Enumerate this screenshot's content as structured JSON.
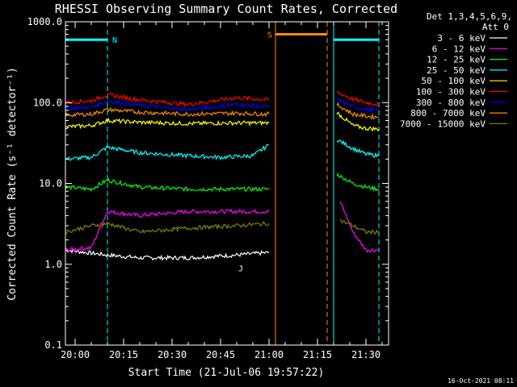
{
  "chart_data": {
    "type": "line",
    "title": "RHESSI Observing Summary Count Rates, Corrected",
    "xlabel": "Start Time (21-Jul-06 19:57:22)",
    "ylabel": "Corrected Count Rate (s⁻¹ detector⁻¹)",
    "y_scale": "log",
    "ylim": [
      0.1,
      1000
    ],
    "xlim": [
      "19:57",
      "21:37"
    ],
    "xticks": [
      "20:00",
      "20:15",
      "20:30",
      "20:45",
      "21:00",
      "21:15",
      "21:30"
    ],
    "yticks": [
      "0.1",
      "1.0",
      "10.0",
      "100.0",
      "1000.0"
    ],
    "legend_header": [
      "Det 1,3,4,5,6,9,",
      "Att 0"
    ],
    "legend_position": "right",
    "timestamp": "16-Oct-2021 08:11",
    "series": [
      {
        "name": "3 - 6 keV",
        "color": "#ffffff",
        "segments": [
          {
            "x": [
              "19:57",
              "20:10",
              "20:20",
              "20:35",
              "20:50",
              "21:00"
            ],
            "y": [
              1.5,
              1.3,
              1.2,
              1.2,
              1.3,
              1.4
            ]
          }
        ]
      },
      {
        "name": "6 - 12 keV",
        "color": "#ff00ff",
        "segments": [
          {
            "x": [
              "19:57",
              "20:05",
              "20:10",
              "20:20",
              "20:35",
              "20:50",
              "21:00"
            ],
            "y": [
              1.5,
              1.6,
              4.5,
              4.0,
              4.5,
              4.5,
              4.5
            ]
          },
          {
            "x": [
              "21:22",
              "21:26",
              "21:30",
              "21:34"
            ],
            "y": [
              6.0,
              2.5,
              1.5,
              1.5
            ]
          }
        ]
      },
      {
        "name": "12 - 25 keV",
        "color": "#00ff00",
        "segments": [
          {
            "x": [
              "19:57",
              "20:05",
              "20:10",
              "20:20",
              "20:35",
              "20:50",
              "21:00"
            ],
            "y": [
              9,
              8.5,
              11,
              9,
              8.5,
              8.5,
              8.5
            ]
          },
          {
            "x": [
              "21:21",
              "21:26",
              "21:30",
              "21:34"
            ],
            "y": [
              13,
              10,
              9,
              8.5
            ]
          }
        ]
      },
      {
        "name": "25 - 50 keV",
        "color": "#00ffff",
        "segments": [
          {
            "x": [
              "19:57",
              "20:05",
              "20:10",
              "20:20",
              "20:35",
              "20:45",
              "20:55",
              "21:00"
            ],
            "y": [
              20,
              21,
              28,
              24,
              22,
              21,
              22,
              30
            ]
          },
          {
            "x": [
              "21:21",
              "21:26",
              "21:30",
              "21:34"
            ],
            "y": [
              35,
              27,
              23,
              22
            ]
          }
        ]
      },
      {
        "name": "50 - 100 keV",
        "color": "#ffff00",
        "segments": [
          {
            "x": [
              "19:57",
              "20:05",
              "20:10",
              "20:20",
              "20:35",
              "20:50",
              "21:00"
            ],
            "y": [
              50,
              52,
              60,
              57,
              55,
              56,
              56
            ]
          },
          {
            "x": [
              "21:21",
              "21:26",
              "21:30",
              "21:34"
            ],
            "y": [
              75,
              52,
              48,
              47
            ]
          }
        ]
      },
      {
        "name": "100 - 300 keV",
        "color": "#ff0000",
        "segments": [
          {
            "x": [
              "19:57",
              "20:05",
              "20:10",
              "20:20",
              "20:35",
              "20:50",
              "21:00"
            ],
            "y": [
              100,
              105,
              125,
              108,
              95,
              115,
              108
            ]
          },
          {
            "x": [
              "21:21",
              "21:26",
              "21:30",
              "21:34"
            ],
            "y": [
              135,
              110,
              100,
              95
            ]
          }
        ]
      },
      {
        "name": "300 - 800 keV",
        "color": "#0000ff",
        "segments": [
          {
            "x": [
              "19:57",
              "20:05",
              "20:10",
              "20:20",
              "20:35",
              "20:50",
              "21:00"
            ],
            "y": [
              85,
              88,
              105,
              92,
              82,
              95,
              88
            ]
          },
          {
            "x": [
              "21:21",
              "21:26",
              "21:30",
              "21:34"
            ],
            "y": [
              110,
              90,
              82,
              80
            ]
          }
        ]
      },
      {
        "name": "800 - 7000 keV",
        "color": "#ff8c00",
        "segments": [
          {
            "x": [
              "19:57",
              "20:05",
              "20:10",
              "20:20",
              "20:35",
              "20:50",
              "21:00"
            ],
            "y": [
              70,
              72,
              82,
              76,
              72,
              74,
              72
            ]
          },
          {
            "x": [
              "21:21",
              "21:26",
              "21:30",
              "21:34"
            ],
            "y": [
              95,
              72,
              68,
              66
            ]
          }
        ]
      },
      {
        "name": "7000 - 15000 keV",
        "color": "#808000",
        "segments": [
          {
            "x": [
              "19:57",
              "20:05",
              "20:10",
              "20:20",
              "20:35",
              "20:50",
              "21:00"
            ],
            "y": [
              2.5,
              3.0,
              3.2,
              2.5,
              2.8,
              3.0,
              3.2
            ]
          },
          {
            "x": [
              "21:22",
              "21:26",
              "21:30",
              "21:34"
            ],
            "y": [
              3.5,
              3.0,
              2.5,
              2.5
            ]
          }
        ]
      }
    ],
    "annotations": [
      {
        "label": "N",
        "color": "#00ffff",
        "x_start": "19:57",
        "x_end": "20:10",
        "y": 600
      },
      {
        "label": "",
        "color": "#00ffff",
        "x_start": "21:20",
        "x_end": "21:34",
        "y": 600
      },
      {
        "label": "S",
        "color": "#ff8c00",
        "x_start": "21:02",
        "x_end": "21:18",
        "y": 700
      },
      {
        "label": "J",
        "color": "#ffffff",
        "x_start": "20:50",
        "x_end": "20:50",
        "y": 0.9
      }
    ],
    "vertical_lines": [
      {
        "x": "19:57",
        "color": "#00ffff",
        "style": "solid"
      },
      {
        "x": "20:10",
        "color": "#00ffff",
        "style": "dashed"
      },
      {
        "x": "21:02",
        "color": "#ff8c00",
        "style": "solid"
      },
      {
        "x": "21:18",
        "color": "#ff8c00",
        "style": "dashed"
      },
      {
        "x": "21:20",
        "color": "#00ffff",
        "style": "solid"
      },
      {
        "x": "21:34",
        "color": "#00ffff",
        "style": "dashed"
      }
    ],
    "grid": false
  }
}
